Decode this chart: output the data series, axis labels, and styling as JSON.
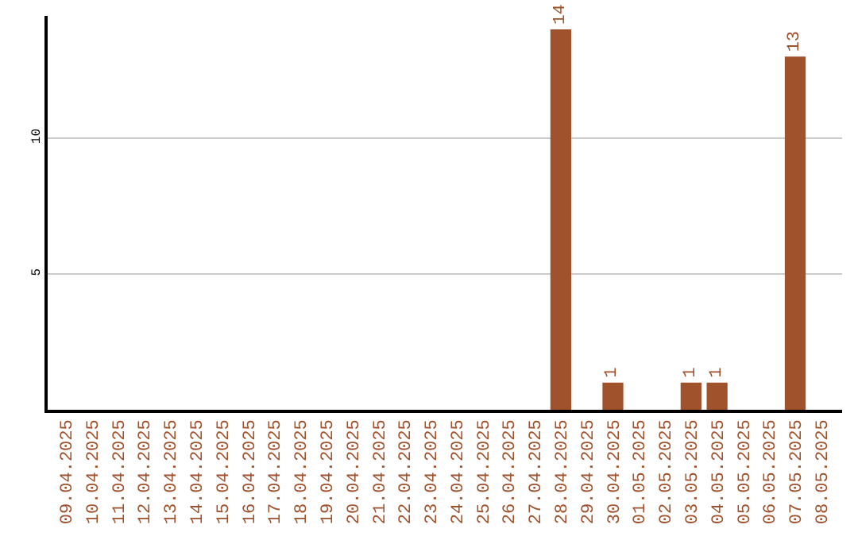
{
  "chart_data": {
    "type": "bar",
    "categories": [
      "09.04.2025",
      "10.04.2025",
      "11.04.2025",
      "12.04.2025",
      "13.04.2025",
      "14.04.2025",
      "15.04.2025",
      "16.04.2025",
      "17.04.2025",
      "18.04.2025",
      "19.04.2025",
      "20.04.2025",
      "21.04.2025",
      "22.04.2025",
      "23.04.2025",
      "24.04.2025",
      "25.04.2025",
      "26.04.2025",
      "27.04.2025",
      "28.04.2025",
      "29.04.2025",
      "30.04.2025",
      "01.05.2025",
      "02.05.2025",
      "03.05.2025",
      "04.05.2025",
      "05.05.2025",
      "06.05.2025",
      "07.05.2025",
      "08.05.2025"
    ],
    "values": [
      0,
      0,
      0,
      0,
      0,
      0,
      0,
      0,
      0,
      0,
      0,
      0,
      0,
      0,
      0,
      0,
      0,
      0,
      0,
      14,
      0,
      1,
      0,
      0,
      1,
      1,
      0,
      0,
      13,
      0
    ],
    "value_labels": [
      null,
      null,
      null,
      null,
      null,
      null,
      null,
      null,
      null,
      null,
      null,
      null,
      null,
      null,
      null,
      null,
      null,
      null,
      null,
      "14",
      null,
      "1",
      null,
      null,
      "1",
      "1",
      null,
      null,
      "13",
      null
    ],
    "color": "#a0522d",
    "ylim": [
      0,
      14.5
    ],
    "yticks": [
      5,
      10
    ],
    "grid": "y",
    "legend": false
  }
}
